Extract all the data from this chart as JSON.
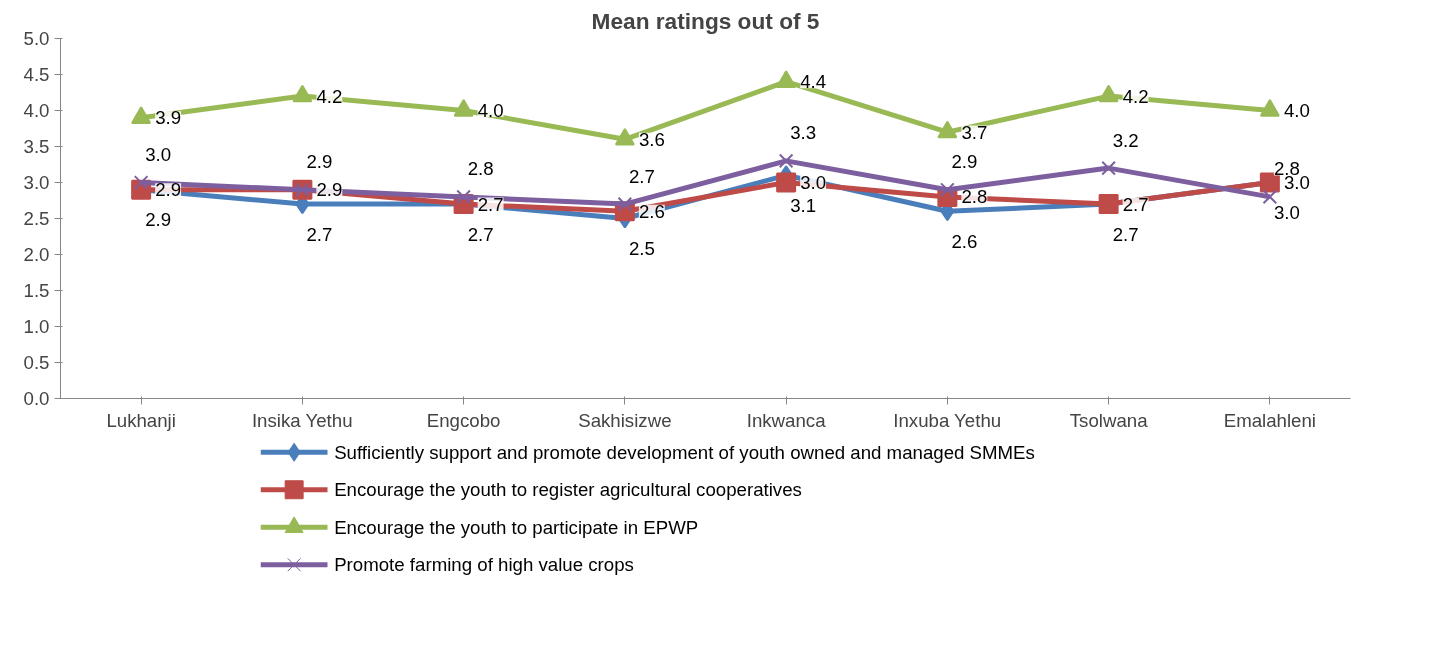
{
  "chart_data": {
    "type": "line",
    "title": "Mean ratings out of 5",
    "categories": [
      "Lukhanji",
      "Insika Yethu",
      "Engcobo",
      "Sakhisizwe",
      "Inkwanca",
      "Inxuba Yethu",
      "Tsolwana",
      "Emalahleni"
    ],
    "series": [
      {
        "name": "Sufficiently support and promote development of youth owned and managed SMMEs",
        "color": "#4a7ebb",
        "marker": "diamond",
        "values": [
          2.9,
          2.7,
          2.7,
          2.5,
          3.1,
          2.6,
          2.7,
          3.0
        ],
        "value_labels": [
          "2.9",
          "2.7",
          "2.7",
          "2.5",
          "3.1",
          "2.6",
          "2.7",
          "3.0"
        ]
      },
      {
        "name": "Encourage the youth to register agricultural cooperatives",
        "color": "#be4b48",
        "marker": "square",
        "values": [
          2.9,
          2.9,
          2.7,
          2.6,
          3.0,
          2.8,
          2.7,
          3.0
        ],
        "value_labels": [
          "2.9",
          "2.9",
          "2.7",
          "2.6",
          "3.0",
          "2.8",
          "2.7",
          "3.0"
        ]
      },
      {
        "name": "Encourage the youth  to participate in EPWP",
        "color": "#98b954",
        "marker": "triangle",
        "values": [
          3.9,
          4.2,
          4.0,
          3.6,
          4.4,
          3.7,
          4.2,
          4.0
        ],
        "value_labels": [
          "3.9",
          "4.2",
          "4.0",
          "3.6",
          "4.4",
          "3.7",
          "4.2",
          "4.0"
        ]
      },
      {
        "name": "Promote farming of high value crops",
        "color": "#7d5fa0",
        "marker": "cross",
        "values": [
          3.0,
          2.9,
          2.8,
          2.7,
          3.3,
          2.9,
          3.2,
          2.8
        ],
        "value_labels": [
          "3.0",
          "2.9",
          "2.8",
          "2.7",
          "3.3",
          "2.9",
          "3.2",
          "2.8"
        ]
      }
    ],
    "ylim": [
      0,
      5
    ],
    "yticks": [
      {
        "value": 0,
        "label": "0.0"
      },
      {
        "value": 0.5,
        "label": "0.5"
      },
      {
        "value": 1,
        "label": "1.0"
      },
      {
        "value": 1.5,
        "label": "1.5"
      },
      {
        "value": 2,
        "label": "2.0"
      },
      {
        "value": 2.5,
        "label": "2.5"
      },
      {
        "value": 3,
        "label": "3.0"
      },
      {
        "value": 3.5,
        "label": "3.5"
      },
      {
        "value": 4,
        "label": "4.0"
      },
      {
        "value": 4.5,
        "label": "4.5"
      },
      {
        "value": 5,
        "label": "5.0"
      }
    ],
    "grid": false,
    "legend": "bottom"
  }
}
